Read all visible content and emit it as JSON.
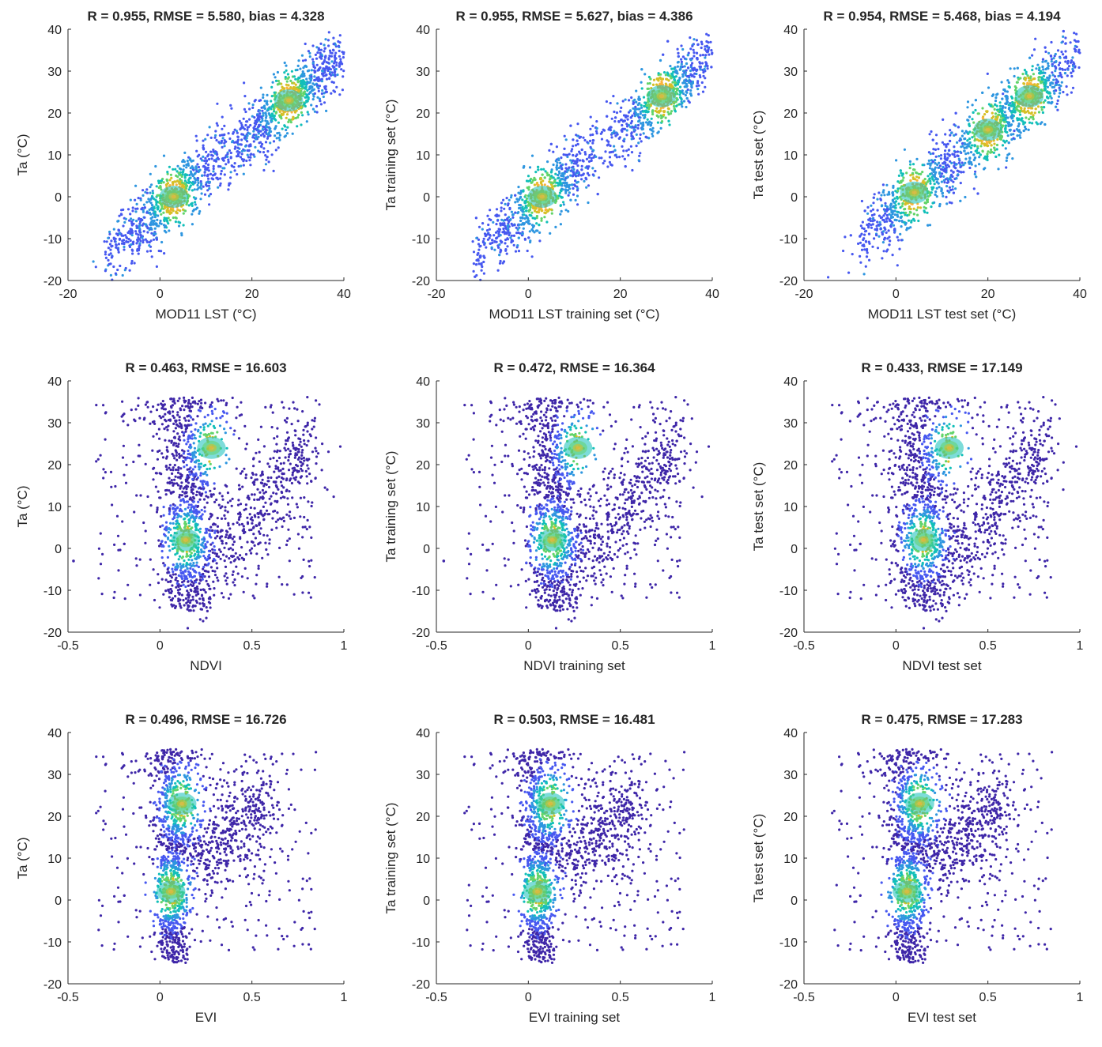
{
  "chart_data": [
    {
      "type": "scatter",
      "title": "R = 0.955, RMSE = 5.580, bias = 4.328",
      "xlabel": "MOD11 LST (°C)",
      "ylabel": "Ta (°C)",
      "xlim": [
        -20,
        40
      ],
      "ylim": [
        -20,
        40
      ],
      "xticks": [
        -20,
        0,
        20,
        40
      ],
      "xtick_labels": [
        "-20",
        "0",
        "20",
        "40"
      ],
      "yticks": [
        -20,
        -10,
        0,
        10,
        20,
        30,
        40
      ],
      "ytick_labels": [
        "-20",
        "-10",
        "0",
        "10",
        "20",
        "30",
        "40"
      ],
      "density": "dense linear cloud from about (-12,-13) to (40,35); hotspots near (3,0) and (28,23)",
      "trend": {
        "x_min": -12,
        "x_max": 40,
        "slope": 0.92,
        "intercept": -2.8,
        "spread": 4.2
      },
      "hotspots": [
        {
          "x": 3,
          "y": 0
        },
        {
          "x": 28,
          "y": 23
        }
      ],
      "outliers": []
    },
    {
      "type": "scatter",
      "title": "R = 0.955, RMSE = 5.627, bias = 4.386",
      "xlabel": "MOD11 LST training set (°C)",
      "ylabel": "Ta  training set (°C)",
      "xlim": [
        -20,
        40
      ],
      "ylim": [
        -20,
        40
      ],
      "xticks": [
        -20,
        0,
        20,
        40
      ],
      "xtick_labels": [
        "-20",
        "0",
        "20",
        "40"
      ],
      "yticks": [
        -20,
        -10,
        0,
        10,
        20,
        30,
        40
      ],
      "ytick_labels": [
        "-20",
        "-10",
        "0",
        "10",
        "20",
        "30",
        "40"
      ],
      "density": "dense linear cloud from about (-12,-13) to (40,35); hotspots near (3,0) and (29,24)",
      "trend": {
        "x_min": -12,
        "x_max": 40,
        "slope": 0.92,
        "intercept": -2.8,
        "spread": 4.2
      },
      "hotspots": [
        {
          "x": 3,
          "y": 0
        },
        {
          "x": 29,
          "y": 24
        }
      ],
      "outliers": []
    },
    {
      "type": "scatter",
      "title": "R = 0.954, RMSE = 5.468, bias = 4.194",
      "xlabel": "MOD11 LST test set (°C)",
      "ylabel": "Ta test set (°C)",
      "xlim": [
        -20,
        40
      ],
      "ylim": [
        -20,
        40
      ],
      "xticks": [
        -20,
        0,
        20,
        40
      ],
      "xtick_labels": [
        "-20",
        "0",
        "20",
        "40"
      ],
      "yticks": [
        -20,
        -10,
        0,
        10,
        20,
        30,
        40
      ],
      "ytick_labels": [
        "-20",
        "-10",
        "0",
        "10",
        "20",
        "30",
        "40"
      ],
      "density": "linear cloud from about (-8,-14) to (40,35); hotspots near (4,1), (20,16) and (29,24)",
      "trend": {
        "x_min": -8,
        "x_max": 40,
        "slope": 0.92,
        "intercept": -2.8,
        "spread": 4.4
      },
      "hotspots": [
        {
          "x": 4,
          "y": 1
        },
        {
          "x": 20,
          "y": 16
        },
        {
          "x": 29,
          "y": 24
        }
      ],
      "outliers": []
    },
    {
      "type": "scatter",
      "title": "R = 0.463, RMSE = 16.603",
      "xlabel": "NDVI",
      "ylabel": "Ta (°C)",
      "xlim": [
        -0.5,
        1
      ],
      "ylim": [
        -20,
        40
      ],
      "xticks": [
        -0.5,
        0,
        0.5,
        1
      ],
      "xtick_labels": [
        "-0.5",
        "0",
        "0.5",
        "1"
      ],
      "yticks": [
        -20,
        -10,
        0,
        10,
        20,
        30,
        40
      ],
      "ytick_labels": [
        "-20",
        "-10",
        "0",
        "10",
        "20",
        "30",
        "40"
      ],
      "density": "vertical column near NDVI 0.15 from -15 to 35 °C, branching to NDVI 0.85 at 20–35 °C",
      "column": {
        "x": 0.15,
        "x_spread": 0.07
      },
      "branch": {
        "x_start": 0.2,
        "x_end": 0.85,
        "y_start": -5,
        "y_end": 25
      },
      "hotspots": [
        {
          "x": 0.14,
          "y": 2
        },
        {
          "x": 0.28,
          "y": 24
        }
      ],
      "outliers": [
        {
          "x": -0.47,
          "y": -3
        }
      ]
    },
    {
      "type": "scatter",
      "title": "R = 0.472, RMSE = 16.364",
      "xlabel": "NDVI training set",
      "ylabel": "Ta  training set (°C)",
      "xlim": [
        -0.5,
        1
      ],
      "ylim": [
        -20,
        40
      ],
      "xticks": [
        -0.5,
        0,
        0.5,
        1
      ],
      "xtick_labels": [
        "-0.5",
        "0",
        "0.5",
        "1"
      ],
      "yticks": [
        -20,
        -10,
        0,
        10,
        20,
        30,
        40
      ],
      "ytick_labels": [
        "-20",
        "-10",
        "0",
        "10",
        "20",
        "30",
        "40"
      ],
      "density": "vertical column near NDVI 0.14 from -15 to 35 °C, branching to NDVI 0.85 at 20–35 °C",
      "column": {
        "x": 0.14,
        "x_spread": 0.07
      },
      "branch": {
        "x_start": 0.2,
        "x_end": 0.85,
        "y_start": -5,
        "y_end": 25
      },
      "hotspots": [
        {
          "x": 0.13,
          "y": 2
        },
        {
          "x": 0.27,
          "y": 24
        }
      ],
      "outliers": [
        {
          "x": -0.46,
          "y": -3
        }
      ]
    },
    {
      "type": "scatter",
      "title": "R = 0.433, RMSE = 17.149",
      "xlabel": "NDVI test set",
      "ylabel": "Ta test set (°C)",
      "xlim": [
        -0.5,
        1
      ],
      "ylim": [
        -20,
        40
      ],
      "xticks": [
        -0.5,
        0,
        0.5,
        1
      ],
      "xtick_labels": [
        "-0.5",
        "0",
        "0.5",
        "1"
      ],
      "yticks": [
        -20,
        -10,
        0,
        10,
        20,
        30,
        40
      ],
      "ytick_labels": [
        "-20",
        "-10",
        "0",
        "10",
        "20",
        "30",
        "40"
      ],
      "density": "sparser vertical column near NDVI 0.15 from -15 to 35 °C, branching to NDVI 0.85",
      "column": {
        "x": 0.15,
        "x_spread": 0.08
      },
      "branch": {
        "x_start": 0.2,
        "x_end": 0.85,
        "y_start": -5,
        "y_end": 25
      },
      "hotspots": [
        {
          "x": 0.15,
          "y": 2
        },
        {
          "x": 0.29,
          "y": 24
        }
      ],
      "outliers": []
    },
    {
      "type": "scatter",
      "title": "R = 0.496, RMSE = 16.726",
      "xlabel": "EVI",
      "ylabel": "Ta (°C)",
      "xlim": [
        -0.5,
        1
      ],
      "ylim": [
        -20,
        40
      ],
      "xticks": [
        -0.5,
        0,
        0.5,
        1
      ],
      "xtick_labels": [
        "-0.5",
        "0",
        "0.5",
        "1"
      ],
      "yticks": [
        -20,
        -10,
        0,
        10,
        20,
        30,
        40
      ],
      "ytick_labels": [
        "-20",
        "-10",
        "0",
        "10",
        "20",
        "30",
        "40"
      ],
      "density": "narrow column near EVI 0.07 from -17 to 36 °C, fanning out to EVI 0.6 at 15–33 °C",
      "column": {
        "x": 0.07,
        "x_spread": 0.045
      },
      "branch": {
        "x_start": 0.12,
        "x_end": 0.6,
        "y_start": 10,
        "y_end": 22
      },
      "hotspots": [
        {
          "x": 0.06,
          "y": 2
        },
        {
          "x": 0.12,
          "y": 23
        }
      ],
      "outliers": []
    },
    {
      "type": "scatter",
      "title": "R = 0.503, RMSE = 16.481",
      "xlabel": "EVI training set",
      "ylabel": "Ta  training set (°C)",
      "xlim": [
        -0.5,
        1
      ],
      "ylim": [
        -20,
        40
      ],
      "xticks": [
        -0.5,
        0,
        0.5,
        1
      ],
      "xtick_labels": [
        "-0.5",
        "0",
        "0.5",
        "1"
      ],
      "yticks": [
        -20,
        -10,
        0,
        10,
        20,
        30,
        40
      ],
      "ytick_labels": [
        "-20",
        "-10",
        "0",
        "10",
        "20",
        "30",
        "40"
      ],
      "density": "narrow column near EVI 0.06 from -17 to 36 °C, fanning out to EVI 0.6 at 15–33 °C",
      "column": {
        "x": 0.06,
        "x_spread": 0.045
      },
      "branch": {
        "x_start": 0.12,
        "x_end": 0.6,
        "y_start": 10,
        "y_end": 22
      },
      "hotspots": [
        {
          "x": 0.05,
          "y": 2
        },
        {
          "x": 0.12,
          "y": 23
        }
      ],
      "outliers": []
    },
    {
      "type": "scatter",
      "title": "R = 0.475, RMSE = 17.283",
      "xlabel": "EVI test set",
      "ylabel": "Ta test set (°C)",
      "xlim": [
        -0.5,
        1
      ],
      "ylim": [
        -20,
        40
      ],
      "xticks": [
        -0.5,
        0,
        0.5,
        1
      ],
      "xtick_labels": [
        "-0.5",
        "0",
        "0.5",
        "1"
      ],
      "yticks": [
        -20,
        -10,
        0,
        10,
        20,
        30,
        40
      ],
      "ytick_labels": [
        "-20",
        "-10",
        "0",
        "10",
        "20",
        "30",
        "40"
      ],
      "density": "narrow column near EVI 0.07 from -15 to 36 °C, fanning out to EVI 0.6 at 15–33 °C",
      "column": {
        "x": 0.07,
        "x_spread": 0.05
      },
      "branch": {
        "x_start": 0.12,
        "x_end": 0.6,
        "y_start": 10,
        "y_end": 22
      },
      "hotspots": [
        {
          "x": 0.06,
          "y": 2
        },
        {
          "x": 0.13,
          "y": 23
        }
      ],
      "outliers": []
    }
  ],
  "colors": {
    "axis": "#262626",
    "colormap": [
      "#3e26a8",
      "#4758f0",
      "#2e96e0",
      "#12bfb9",
      "#62d46a",
      "#d6bf27",
      "#f9b43c"
    ]
  }
}
